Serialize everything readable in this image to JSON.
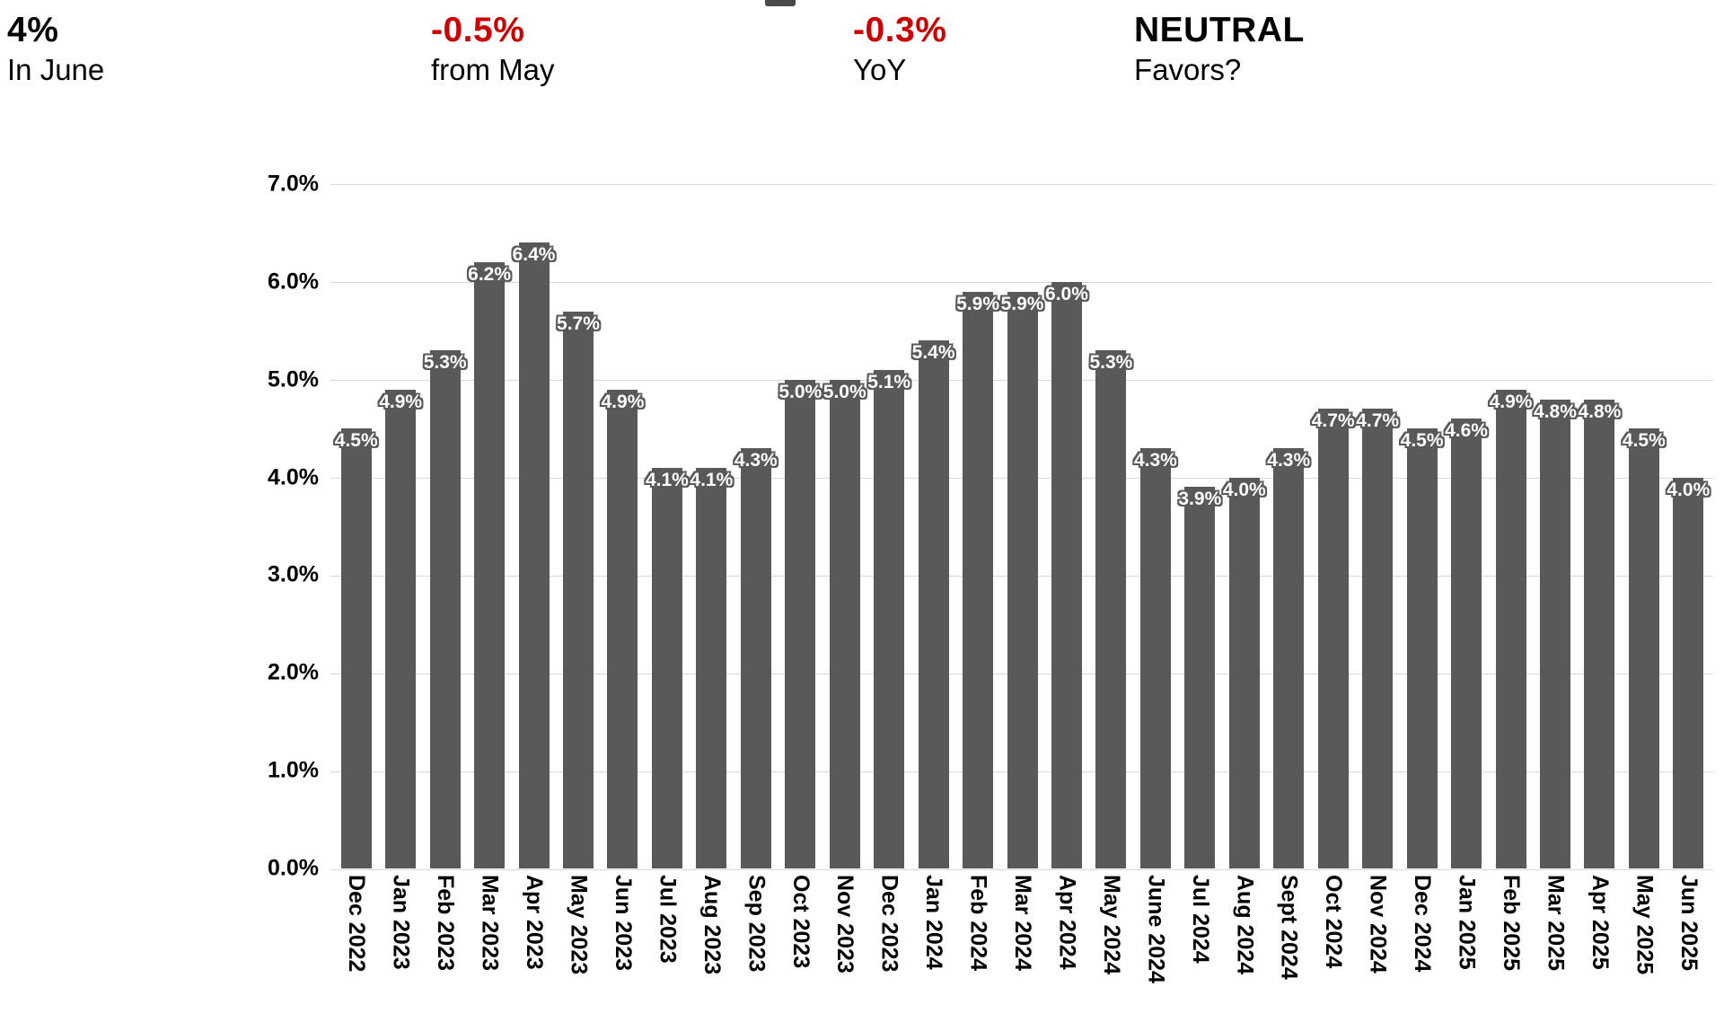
{
  "stats": {
    "items": [
      {
        "value": "4%",
        "label": "In June",
        "color": "#000000"
      },
      {
        "value": "-0.5%",
        "label": "from May",
        "color": "#cc0000"
      },
      {
        "value": "-0.3%",
        "label": "YoY",
        "color": "#cc0000"
      },
      {
        "value": "NEUTRAL",
        "label": "Favors?",
        "color": "#000000"
      }
    ]
  },
  "colors": {
    "bar": "#595959",
    "grid": "#d9d9d9",
    "negative": "#cc0000",
    "bar_label_text": "#ffffff",
    "axis_text": "#000000"
  },
  "chart_data": {
    "type": "bar",
    "title": "",
    "xlabel": "",
    "ylabel": "",
    "ylim": [
      0,
      7
    ],
    "grid": true,
    "legend": "none",
    "value_suffix": "%",
    "yticks": [
      "7.0%",
      "6.0%",
      "5.0%",
      "4.0%",
      "3.0%",
      "2.0%",
      "1.0%",
      "0.0%"
    ],
    "categories": [
      "Dec 2022",
      "Jan 2023",
      "Feb 2023",
      "Mar 2023",
      "Apr 2023",
      "May 2023",
      "Jun 2023",
      "Jul 2023",
      "Aug 2023",
      "Sep 2023",
      "Oct 2023",
      "Nov 2023",
      "Dec 2023",
      "Jan 2024",
      "Feb 2024",
      "Mar 2024",
      "Apr 2024",
      "May 2024",
      "June 2024",
      "Jul 2024",
      "Aug 2024",
      "Sept 2024",
      "Oct 2024",
      "Nov 2024",
      "Dec 2024",
      "Jan 2025",
      "Feb 2025",
      "Mar 2025",
      "Apr 2025",
      "May 2025",
      "Jun 2025"
    ],
    "values": [
      4.5,
      4.9,
      5.3,
      6.2,
      6.4,
      5.7,
      4.9,
      4.1,
      4.1,
      4.3,
      5.0,
      5.0,
      5.1,
      5.4,
      5.9,
      5.9,
      6.0,
      5.3,
      4.3,
      3.9,
      4.0,
      4.3,
      4.7,
      4.7,
      4.5,
      4.6,
      4.9,
      4.8,
      4.8,
      4.5,
      4.0
    ]
  }
}
